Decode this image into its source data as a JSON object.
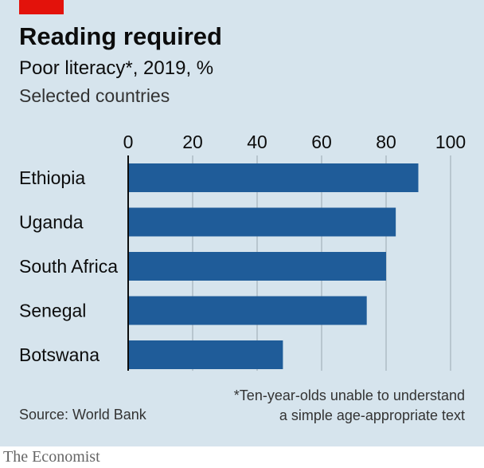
{
  "header": {
    "title": "Reading required",
    "subtitle": "Poor literacy*, 2019, %",
    "subtitle2": "Selected countries"
  },
  "footer": {
    "footnote_line1": "*Ten-year-olds unable to understand",
    "footnote_line2": "a simple age-appropriate text",
    "source": "Source: World Bank",
    "brand": "The Economist"
  },
  "colors": {
    "bar": "#1f5c99",
    "background": "#d6e4ed",
    "grid": "#b8c6cf",
    "brand_red": "#e3120b"
  },
  "chart_data": {
    "type": "bar",
    "orientation": "horizontal",
    "categories": [
      "Ethiopia",
      "Uganda",
      "South Africa",
      "Senegal",
      "Botswana"
    ],
    "values": [
      90,
      83,
      80,
      74,
      48
    ],
    "xlim": [
      0,
      100
    ],
    "xticks": [
      "0",
      "20",
      "40",
      "60",
      "80",
      "100"
    ],
    "grid": true,
    "title": "Reading required",
    "xlabel": "",
    "ylabel": ""
  }
}
